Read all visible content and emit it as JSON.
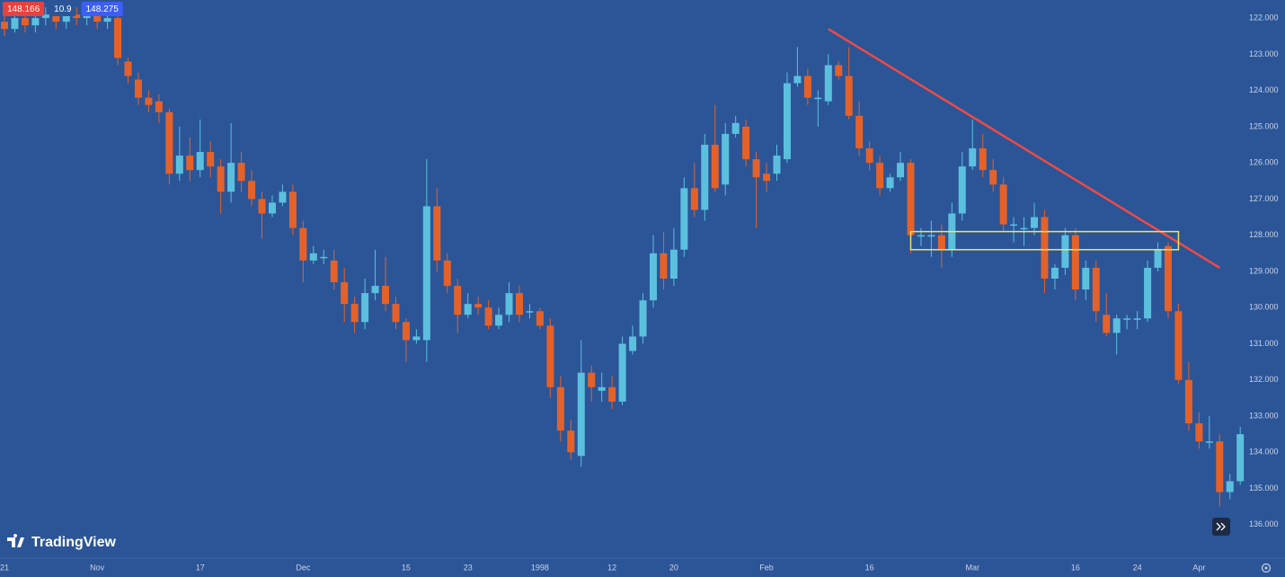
{
  "chart_data": {
    "type": "candlestick",
    "background": "#2b5597",
    "up_color": "#e4622a",
    "down_color": "#5bc0de",
    "inverted": true,
    "ylim": [
      121.5,
      136.9
    ],
    "yticks": [
      {
        "value": 122,
        "label": "122.000"
      },
      {
        "value": 123,
        "label": "123.000"
      },
      {
        "value": 124,
        "label": "124.000"
      },
      {
        "value": 125,
        "label": "125.000"
      },
      {
        "value": 126,
        "label": "126.000"
      },
      {
        "value": 127,
        "label": "127.000"
      },
      {
        "value": 128,
        "label": "128.000"
      },
      {
        "value": 129,
        "label": "129.000"
      },
      {
        "value": 130,
        "label": "130.000"
      },
      {
        "value": 131,
        "label": "131.000"
      },
      {
        "value": 132,
        "label": "132.000"
      },
      {
        "value": 133,
        "label": "133.000"
      },
      {
        "value": 134,
        "label": "134.000"
      },
      {
        "value": 135,
        "label": "135.000"
      },
      {
        "value": 136,
        "label": "136.000"
      }
    ],
    "grid": false,
    "categories": [
      "21",
      null,
      null,
      null,
      null,
      null,
      null,
      null,
      null,
      "Nov",
      null,
      null,
      null,
      null,
      null,
      null,
      null,
      null,
      null,
      "17",
      null,
      null,
      null,
      null,
      null,
      null,
      null,
      null,
      null,
      "Dec",
      null,
      null,
      null,
      null,
      null,
      null,
      null,
      null,
      null,
      "15",
      null,
      null,
      null,
      null,
      null,
      "23",
      null,
      null,
      null,
      null,
      null,
      null,
      "1998",
      null,
      null,
      null,
      null,
      null,
      null,
      "12",
      null,
      null,
      null,
      null,
      null,
      "20",
      null,
      null,
      null,
      null,
      null,
      null,
      null,
      null,
      "Feb",
      null,
      null,
      null,
      null,
      null,
      null,
      null,
      null,
      null,
      "16",
      null,
      null,
      null,
      null,
      null,
      null,
      null,
      null,
      null,
      "Mar",
      null,
      null,
      null,
      null,
      null,
      null,
      null,
      null,
      null,
      "16",
      null,
      null,
      null,
      null,
      null,
      "24",
      null,
      null,
      null,
      null,
      null,
      "Apr",
      null,
      null,
      null,
      null
    ],
    "open": [
      122.1,
      122.3,
      122.0,
      122.2,
      122.0,
      121.9,
      122.1,
      121.9,
      122.0,
      121.9,
      122.1,
      122.0,
      123.2,
      123.7,
      124.2,
      124.3,
      124.6,
      126.3,
      125.8,
      126.2,
      125.7,
      126.1,
      126.8,
      126.0,
      126.5,
      127.0,
      127.4,
      127.1,
      126.8,
      127.8,
      128.7,
      128.6,
      128.7,
      129.3,
      129.9,
      130.4,
      129.6,
      129.4,
      129.9,
      130.4,
      130.9,
      130.9,
      127.2,
      128.7,
      129.4,
      130.2,
      129.9,
      130.0,
      130.5,
      130.2,
      129.6,
      130.1,
      130.1,
      130.5,
      132.2,
      133.4,
      134.1,
      131.8,
      132.3,
      132.2,
      132.6,
      131.2,
      130.8,
      129.8,
      128.5,
      129.2,
      128.4,
      126.7,
      127.3,
      125.5,
      126.6,
      125.2,
      125.0,
      125.9,
      126.3,
      126.3,
      125.9,
      123.8,
      123.6,
      124.2,
      124.3,
      123.3,
      123.6,
      124.7,
      125.6,
      126.0,
      126.7,
      126.4,
      126.0,
      128.0,
      128.0,
      128.0,
      128.4,
      127.4,
      126.1,
      125.6,
      126.2,
      126.6,
      127.7,
      127.8,
      127.8,
      127.5,
      129.2,
      128.9,
      128.0,
      129.5,
      128.9,
      130.2,
      130.7,
      130.3,
      130.3,
      130.3,
      128.9,
      128.3,
      130.1,
      132.0,
      133.2,
      133.7,
      133.7,
      135.1,
      134.8
    ],
    "high": [
      122.5,
      122.4,
      122.4,
      122.4,
      122.2,
      122.3,
      122.3,
      122.2,
      122.2,
      122.3,
      122.3,
      123.3,
      123.8,
      124.4,
      124.6,
      124.9,
      126.6,
      126.5,
      126.5,
      126.4,
      126.4,
      127.4,
      127.1,
      126.8,
      127.2,
      128.1,
      127.5,
      127.2,
      128.0,
      129.3,
      128.8,
      128.8,
      129.5,
      130.4,
      130.7,
      130.6,
      129.8,
      130.1,
      130.6,
      131.5,
      131.0,
      131.5,
      129.0,
      129.6,
      130.7,
      130.3,
      130.2,
      130.6,
      130.6,
      130.4,
      130.4,
      130.3,
      130.6,
      132.5,
      133.7,
      134.2,
      134.4,
      132.6,
      132.6,
      132.8,
      132.7,
      131.3,
      131.0,
      130.0,
      129.5,
      129.4,
      128.6,
      127.5,
      127.6,
      126.8,
      126.9,
      125.3,
      126.1,
      127.8,
      126.8,
      126.5,
      126.0,
      123.9,
      124.4,
      125.0,
      124.4,
      123.7,
      124.8,
      125.8,
      126.2,
      126.9,
      126.8,
      126.5,
      128.5,
      128.3,
      128.6,
      128.9,
      128.6,
      127.6,
      126.2,
      126.4,
      126.8,
      127.9,
      128.2,
      128.3,
      128.0,
      129.6,
      129.5,
      129.1,
      129.8,
      129.8,
      130.4,
      130.8,
      131.3,
      130.6,
      130.6,
      130.4,
      129.0,
      130.3,
      132.1,
      133.4,
      133.9,
      133.9,
      135.5,
      135.3,
      134.9
    ],
    "low": [
      121.9,
      121.8,
      121.8,
      121.8,
      121.7,
      121.7,
      121.7,
      121.7,
      121.7,
      121.7,
      121.8,
      121.8,
      123.1,
      123.5,
      124.0,
      124.1,
      124.5,
      125.0,
      125.3,
      124.8,
      125.4,
      125.9,
      124.9,
      125.7,
      126.2,
      126.8,
      126.9,
      126.6,
      126.6,
      127.6,
      128.3,
      128.4,
      128.4,
      128.9,
      129.7,
      129.2,
      128.4,
      128.6,
      129.7,
      130.3,
      130.6,
      125.9,
      126.7,
      128.5,
      129.2,
      129.6,
      129.7,
      129.8,
      130.0,
      129.3,
      129.4,
      129.9,
      130.0,
      130.3,
      131.9,
      133.1,
      130.9,
      131.6,
      131.8,
      131.9,
      130.8,
      130.5,
      129.6,
      128.0,
      127.9,
      127.8,
      126.4,
      126.0,
      125.2,
      124.4,
      124.9,
      124.7,
      124.8,
      125.7,
      126.0,
      125.5,
      123.5,
      122.8,
      123.4,
      124.0,
      123.0,
      123.2,
      122.8,
      124.3,
      125.4,
      125.8,
      126.3,
      125.7,
      125.9,
      127.8,
      127.6,
      127.7,
      127.1,
      125.7,
      124.8,
      125.2,
      125.9,
      126.4,
      127.5,
      127.5,
      127.1,
      127.3,
      128.8,
      127.8,
      127.8,
      128.7,
      128.7,
      129.6,
      130.2,
      130.2,
      130.1,
      128.7,
      128.2,
      128.2,
      129.9,
      131.5,
      132.9,
      133.0,
      133.5,
      134.6,
      133.3
    ],
    "close": [
      122.3,
      122.0,
      122.2,
      122.0,
      121.9,
      122.1,
      121.9,
      122.0,
      121.9,
      122.1,
      122.0,
      123.1,
      123.6,
      124.2,
      124.4,
      124.6,
      126.3,
      125.8,
      126.2,
      125.7,
      126.1,
      126.8,
      126.0,
      126.5,
      127.0,
      127.4,
      127.1,
      126.8,
      127.8,
      128.7,
      128.5,
      128.6,
      129.3,
      129.9,
      130.4,
      129.6,
      129.4,
      129.9,
      130.4,
      130.9,
      130.8,
      127.2,
      128.7,
      129.4,
      130.2,
      129.9,
      130.0,
      130.5,
      130.2,
      129.6,
      130.2,
      130.1,
      130.5,
      132.2,
      133.4,
      134.0,
      131.8,
      132.2,
      132.2,
      132.6,
      131.0,
      130.8,
      129.8,
      128.5,
      129.2,
      128.4,
      126.7,
      127.3,
      125.5,
      126.7,
      125.2,
      124.9,
      125.9,
      126.4,
      126.5,
      125.8,
      123.8,
      123.6,
      124.2,
      124.2,
      123.3,
      123.6,
      124.7,
      125.6,
      126.0,
      126.7,
      126.4,
      126.0,
      128.0,
      128.0,
      128.0,
      128.4,
      127.4,
      126.1,
      125.6,
      126.2,
      126.6,
      127.7,
      127.7,
      127.8,
      127.5,
      129.2,
      128.9,
      128.0,
      129.5,
      128.9,
      130.1,
      130.7,
      130.3,
      130.3,
      130.3,
      128.9,
      128.4,
      130.1,
      132.0,
      133.2,
      133.7,
      133.7,
      135.1,
      134.8,
      133.5
    ],
    "annotations": [
      {
        "type": "line",
        "x": [
          80,
          118
        ],
        "y": [
          122.3,
          128.9
        ],
        "color": "#f04a45"
      },
      {
        "type": "rect",
        "x": [
          88,
          114
        ],
        "y": [
          127.9,
          128.4
        ],
        "color": "#f2e25c"
      }
    ],
    "price_badges": [
      {
        "text": "148.166",
        "color": "#e8413e"
      },
      {
        "text": "10.9",
        "color": "#2b5597"
      },
      {
        "text": "148.275",
        "color": "#3d5ef5"
      }
    ],
    "watermark": "TradingView"
  }
}
